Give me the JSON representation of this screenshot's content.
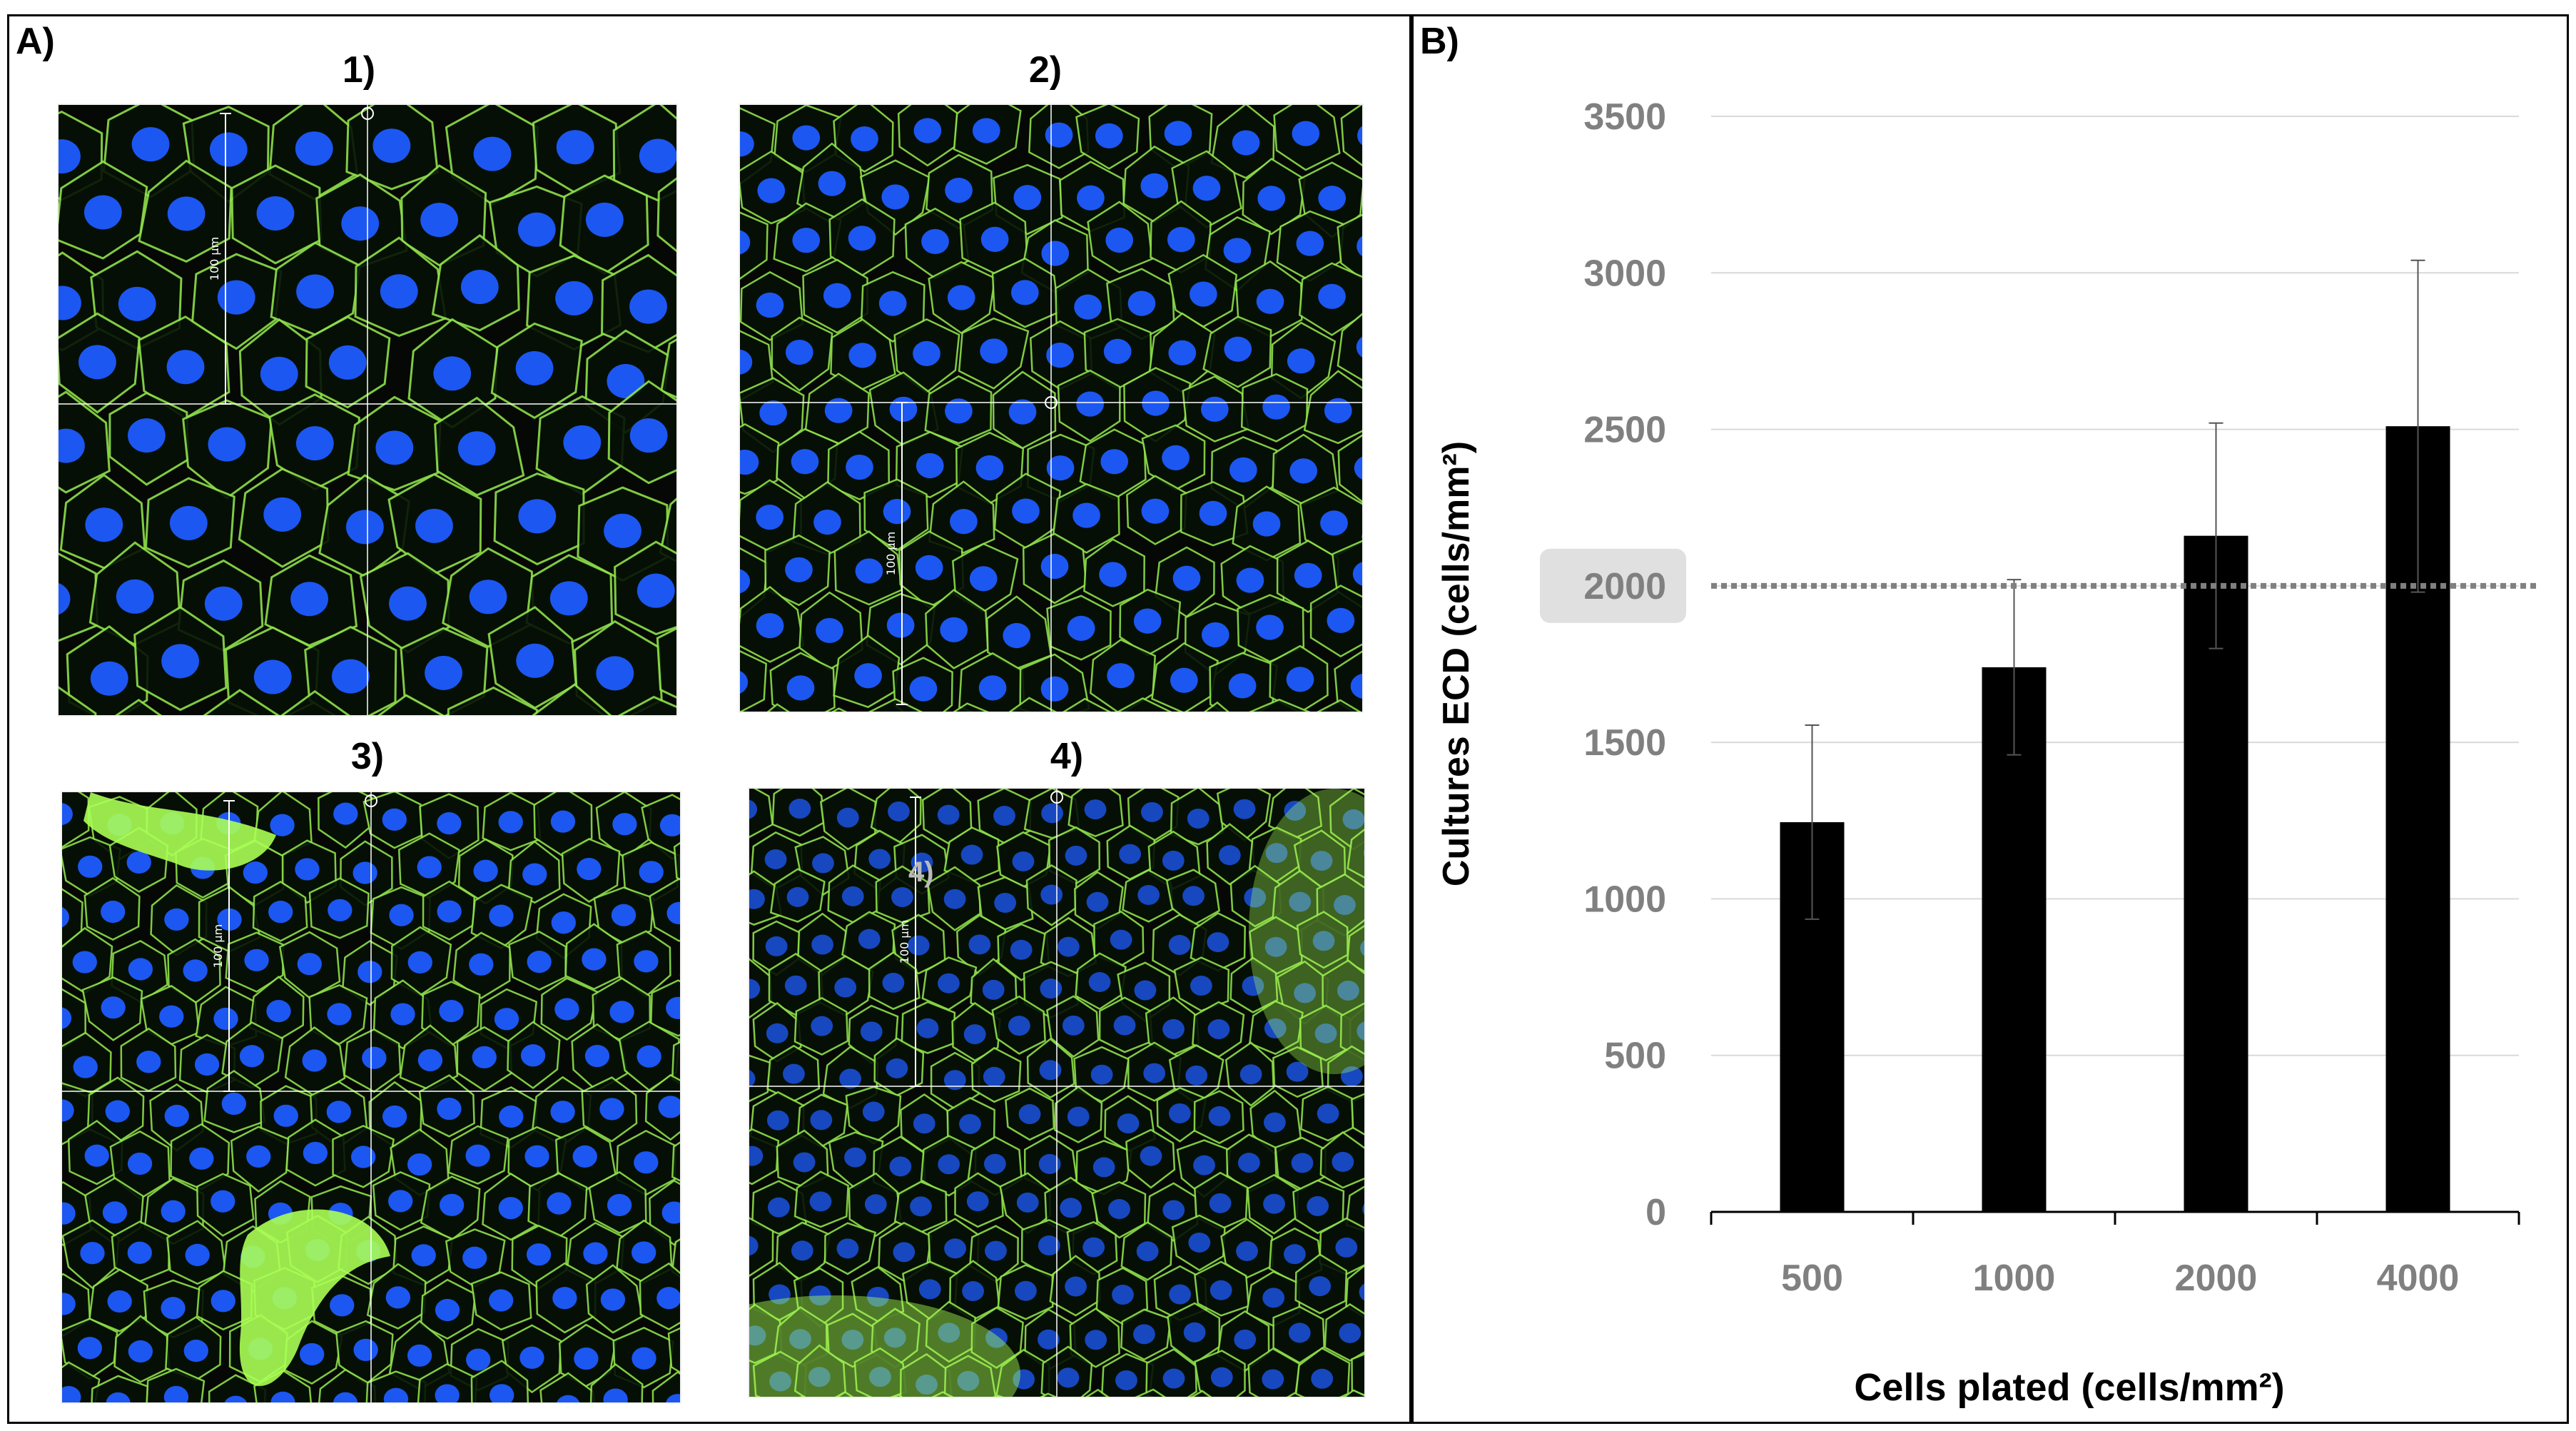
{
  "panel_a": {
    "label": "A)",
    "images": [
      {
        "title": "1)",
        "scale_label": "100 µm"
      },
      {
        "title": "2)",
        "scale_label": "100 µm"
      },
      {
        "title": "3)",
        "scale_label": "100 µm"
      },
      {
        "title": "4)",
        "scale_label": "100 µm",
        "inner_label": "4)"
      }
    ]
  },
  "panel_b": {
    "label": "B)"
  },
  "colors": {
    "nucleus": "#1e5cff",
    "membrane": "#8ee04a",
    "background": "#050805",
    "bar": "#000000",
    "reference_line": "#808080",
    "highlight_box": "#e0e0e0",
    "tick_label": "#808080"
  },
  "chart_data": {
    "type": "bar",
    "categories": [
      "500",
      "1000",
      "2000",
      "4000"
    ],
    "values": [
      1245,
      1740,
      2160,
      2510
    ],
    "error": [
      310,
      280,
      360,
      530
    ],
    "title": "",
    "xlabel": "Cells plated (cells/mm²)",
    "ylabel": "Cultures ECD (cells/mm²)",
    "ylim": [
      0,
      3500
    ],
    "yticks": [
      "0",
      "500",
      "1000",
      "1500",
      "2000",
      "2500",
      "3000",
      "3500"
    ],
    "reference_line": {
      "value": 2000,
      "label": "2000",
      "style": "dotted"
    },
    "grid": true,
    "legend": "none"
  }
}
